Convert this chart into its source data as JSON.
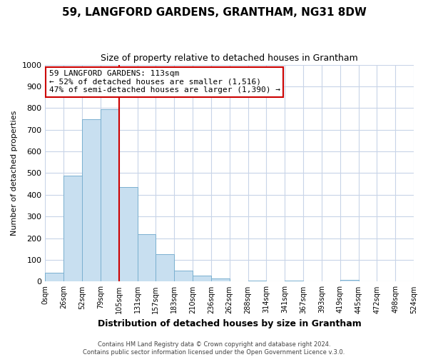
{
  "title": "59, LANGFORD GARDENS, GRANTHAM, NG31 8DW",
  "subtitle": "Size of property relative to detached houses in Grantham",
  "xlabel": "Distribution of detached houses by size in Grantham",
  "ylabel": "Number of detached properties",
  "footer_line1": "Contains HM Land Registry data © Crown copyright and database right 2024.",
  "footer_line2": "Contains public sector information licensed under the Open Government Licence v.3.0.",
  "bin_labels": [
    "0sqm",
    "26sqm",
    "52sqm",
    "79sqm",
    "105sqm",
    "131sqm",
    "157sqm",
    "183sqm",
    "210sqm",
    "236sqm",
    "262sqm",
    "288sqm",
    "314sqm",
    "341sqm",
    "367sqm",
    "393sqm",
    "419sqm",
    "445sqm",
    "472sqm",
    "498sqm",
    "524sqm"
  ],
  "bar_heights": [
    42,
    487,
    748,
    793,
    435,
    220,
    125,
    52,
    28,
    14,
    0,
    5,
    0,
    4,
    0,
    0,
    8,
    0,
    0,
    0
  ],
  "bar_color": "#c8dff0",
  "bar_edge_color": "#7ab0d0",
  "highlight_color": "#cc0000",
  "highlight_line_after_bar": 3,
  "ylim": [
    0,
    1000
  ],
  "yticks": [
    0,
    100,
    200,
    300,
    400,
    500,
    600,
    700,
    800,
    900,
    1000
  ],
  "annotation_title": "59 LANGFORD GARDENS: 113sqm",
  "annotation_line1": "← 52% of detached houses are smaller (1,516)",
  "annotation_line2": "47% of semi-detached houses are larger (1,390) →",
  "annotation_box_color": "#ffffff",
  "annotation_box_edge": "#cc0000",
  "background_color": "#ffffff",
  "grid_color": "#c8d4e8",
  "title_fontsize": 11,
  "subtitle_fontsize": 9,
  "ylabel_fontsize": 8,
  "xlabel_fontsize": 9,
  "annotation_fontsize": 8,
  "tick_fontsize": 7,
  "footer_fontsize": 6
}
